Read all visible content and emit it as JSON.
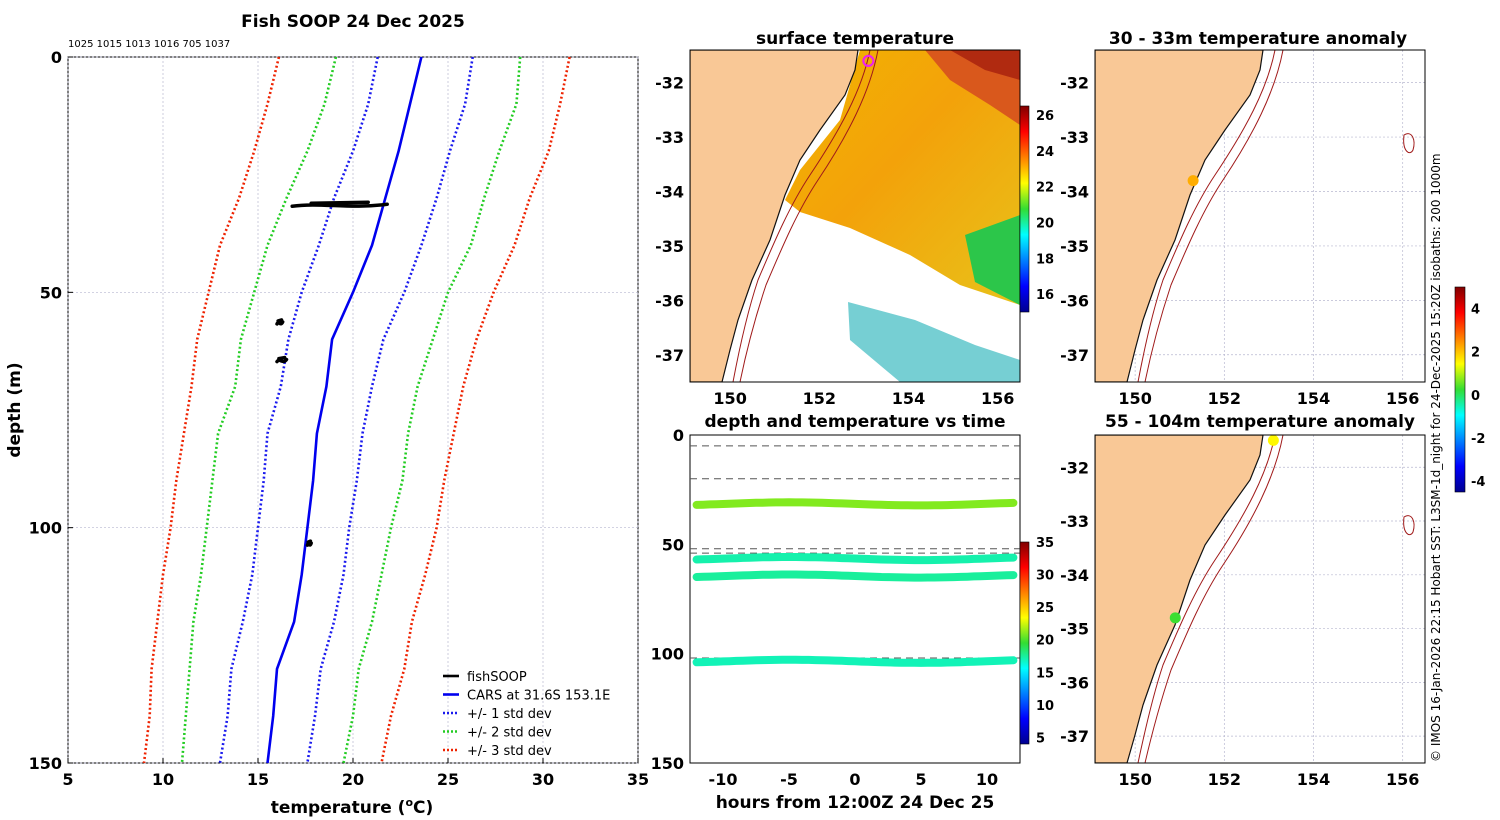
{
  "credit": "© IMOS 16-Jan-2026 22:15 Hobart SST: L3SM-1d_night for 24-Dec-2025 15:20Z isobaths: 200  1000m",
  "colors": {
    "land": "#f9c896",
    "fish": "#000000",
    "cars": "#0000ee",
    "std1": "#1a1aee",
    "std2": "#22cc22",
    "std3": "#ee2200",
    "isobath": "#a01a1a",
    "grid": "#b8b8d0",
    "dash": "#555555"
  },
  "chart_data": [
    {
      "id": "profile",
      "type": "line",
      "title": "Fish SOOP 24 Dec 2025",
      "subtitle": "1025 1015 1013 1016 705 1037",
      "xlabel": "temperature",
      "xlabel_sup": "o",
      "xlabel_unit": "C",
      "ylabel": "depth (m)",
      "xlim": [
        5,
        35
      ],
      "ylim": [
        0,
        150
      ],
      "xticks": [
        5,
        10,
        15,
        20,
        25,
        30,
        35
      ],
      "yticks": [
        0,
        50,
        100,
        150
      ],
      "grid": true,
      "legend_position": "bottom-right",
      "legend": [
        {
          "label": "fishSOOP",
          "style": "solid-black"
        },
        {
          "label": "CARS at 31.6S 153.1E",
          "style": "solid-blue"
        },
        {
          "label": "+/- 1 std dev",
          "style": "dotted-blue"
        },
        {
          "label": "+/- 2 std dev",
          "style": "dotted-green"
        },
        {
          "label": "+/- 3 std dev",
          "style": "dotted-red"
        }
      ],
      "depths": [
        0,
        10,
        20,
        30,
        40,
        50,
        60,
        70,
        80,
        90,
        100,
        110,
        120,
        130,
        140,
        150
      ],
      "series": [
        {
          "name": "CARS mean",
          "values": [
            23.6,
            23.0,
            22.4,
            21.7,
            21.0,
            20.0,
            18.9,
            18.6,
            18.1,
            17.9,
            17.6,
            17.3,
            16.9,
            16.0,
            15.8,
            15.5
          ]
        },
        {
          "name": "-1 std",
          "values": [
            21.3,
            20.8,
            20.0,
            19.0,
            18.2,
            17.3,
            16.6,
            16.2,
            15.5,
            15.3,
            15.0,
            14.7,
            14.2,
            13.6,
            13.4,
            13.0
          ]
        },
        {
          "name": "+1 std",
          "values": [
            26.3,
            25.9,
            25.1,
            24.4,
            23.6,
            22.7,
            21.6,
            21.0,
            20.5,
            20.2,
            19.8,
            19.5,
            19.0,
            18.3,
            18.0,
            17.6
          ]
        },
        {
          "name": "-2 std",
          "values": [
            19.1,
            18.5,
            17.6,
            16.5,
            15.5,
            14.8,
            14.1,
            13.8,
            12.9,
            12.6,
            12.3,
            12.0,
            11.6,
            11.4,
            11.2,
            11.0
          ]
        },
        {
          "name": "+2 std",
          "values": [
            28.8,
            28.6,
            27.7,
            26.9,
            26.2,
            25.0,
            24.2,
            23.4,
            22.9,
            22.6,
            22.0,
            21.5,
            21.0,
            20.3,
            20.0,
            19.5
          ]
        },
        {
          "name": "-3 std",
          "values": [
            16.1,
            15.5,
            14.8,
            14.0,
            13.0,
            12.4,
            11.8,
            11.5,
            11.1,
            10.7,
            10.4,
            10.0,
            9.7,
            9.4,
            9.3,
            9.0
          ]
        },
        {
          "name": "+3 std",
          "values": [
            31.4,
            30.9,
            30.3,
            29.3,
            28.5,
            27.4,
            26.5,
            25.8,
            25.3,
            24.8,
            24.4,
            23.8,
            23.1,
            22.7,
            22.0,
            21.5
          ]
        }
      ],
      "fish_clusters": [
        {
          "depth": 31.5,
          "t_min": 16.8,
          "t_max": 21.8
        },
        {
          "depth": 56.5,
          "t_min": 16.0,
          "t_max": 16.3
        },
        {
          "depth": 64.5,
          "t_min": 16.0,
          "t_max": 16.5
        },
        {
          "depth": 103.5,
          "t_min": 17.6,
          "t_max": 17.8
        }
      ]
    },
    {
      "id": "sst",
      "type": "heatmap",
      "title": "surface temperature",
      "xlim": [
        149.1,
        156.5
      ],
      "ylim": [
        -37.5,
        -31.4
      ],
      "xticks": [
        150,
        152,
        154,
        156
      ],
      "yticks": [
        -32,
        -33,
        -34,
        -35,
        -36,
        -37
      ],
      "colorbar": {
        "min": 15,
        "max": 26.5,
        "ticks": [
          16,
          18,
          20,
          22,
          24,
          26
        ]
      },
      "station": {
        "lon": 153.1,
        "lat": -31.6
      }
    },
    {
      "id": "time",
      "type": "scatter",
      "title": "depth and temperature vs time",
      "xlabel": "hours from 12:00Z 24 Dec 25",
      "xlim": [
        -12.5,
        12.5
      ],
      "ylim": [
        0,
        150
      ],
      "xticks": [
        -10,
        -5,
        0,
        5,
        10
      ],
      "yticks": [
        0,
        50,
        100,
        150
      ],
      "colorbar": {
        "min": 4,
        "max": 35,
        "ticks": [
          5,
          10,
          15,
          20,
          25,
          30,
          35
        ]
      },
      "reference_depths": [
        5,
        20,
        52,
        54,
        102
      ],
      "tracks": [
        {
          "depth": 31.5,
          "temp": 21.0
        },
        {
          "depth": 56.5,
          "temp": 17.2
        },
        {
          "depth": 64.5,
          "temp": 17.5
        },
        {
          "depth": 103.5,
          "temp": 17.0
        }
      ]
    },
    {
      "id": "anom1",
      "type": "scatter",
      "title": "30 - 33m temperature anomaly",
      "xlim": [
        149.1,
        156.5
      ],
      "ylim": [
        -37.5,
        -31.4
      ],
      "xticks": [
        150,
        152,
        154,
        156
      ],
      "yticks": [
        -32,
        -33,
        -34,
        -35,
        -36,
        -37
      ],
      "points": [
        {
          "lon": 151.3,
          "lat": -33.8,
          "anomaly": 2.2
        }
      ]
    },
    {
      "id": "anom2",
      "type": "scatter",
      "title": "55 - 104m temperature anomaly",
      "xlim": [
        149.1,
        156.5
      ],
      "ylim": [
        -37.5,
        -31.4
      ],
      "xticks": [
        150,
        152,
        154,
        156
      ],
      "yticks": [
        -32,
        -33,
        -34,
        -35,
        -36,
        -37
      ],
      "points": [
        {
          "lon": 153.1,
          "lat": -31.5,
          "anomaly": 1.5
        },
        {
          "lon": 150.9,
          "lat": -34.8,
          "anomaly": 0.3
        }
      ]
    },
    {
      "id": "anom_colorbar",
      "type": "heatmap",
      "colorbar": {
        "min": -4.5,
        "max": 5,
        "ticks": [
          -4,
          -2,
          0,
          2,
          4
        ]
      }
    }
  ]
}
